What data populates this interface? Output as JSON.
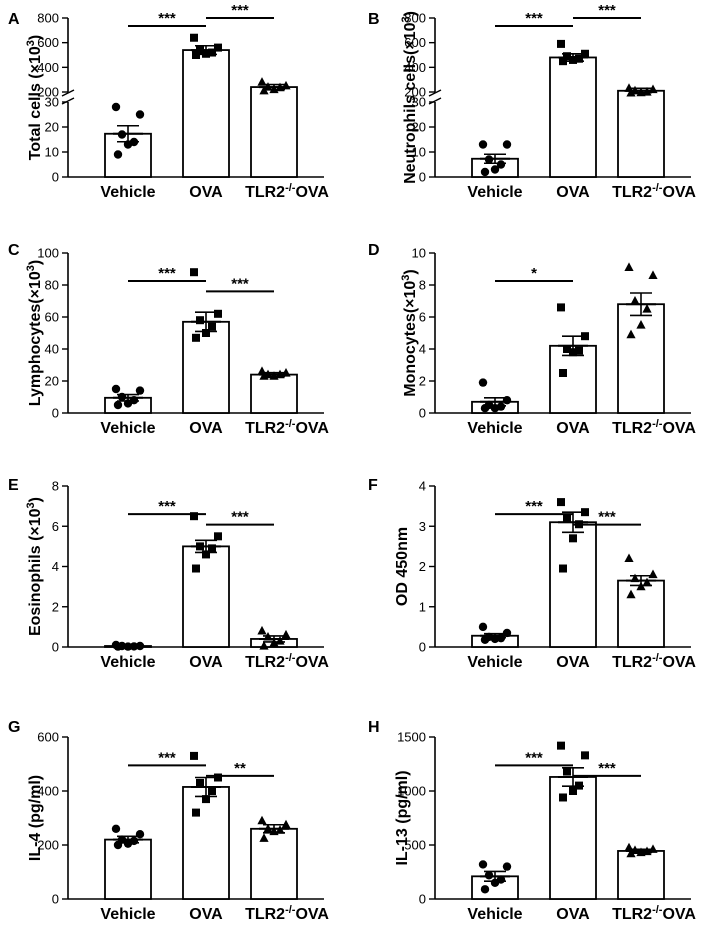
{
  "chart_data": [
    {
      "panel": "A",
      "type": "bar",
      "ylabel": "Total cells (×10³)",
      "axis_break": true,
      "categories": [
        "Vehicle",
        "OVA",
        "TLR2⁻/⁻OVA"
      ],
      "bar_values": [
        17.3,
        540,
        240
      ],
      "sem": [
        3.2,
        35,
        20
      ],
      "points": [
        [
          28,
          25,
          17,
          14,
          13,
          9
        ],
        [
          640,
          560,
          540,
          520,
          510,
          500
        ],
        [
          280,
          250,
          240,
          235,
          220,
          210
        ]
      ],
      "markers": [
        "circle",
        "square",
        "triangle"
      ],
      "lower_ticks": [
        0,
        10,
        20,
        30
      ],
      "upper_ticks": [
        200,
        400,
        600,
        800
      ],
      "significance": [
        {
          "from": 0,
          "to": 1,
          "label": "***"
        },
        {
          "from": 1,
          "to": 2,
          "label": "***"
        }
      ]
    },
    {
      "panel": "B",
      "type": "bar",
      "ylabel": "Neutrophils cells(×10³)",
      "axis_break": true,
      "categories": [
        "Vehicle",
        "OVA",
        "TLR2⁻/⁻OVA"
      ],
      "bar_values": [
        7.3,
        480,
        210
      ],
      "sem": [
        1.8,
        30,
        20
      ],
      "points": [
        [
          13,
          13,
          7,
          5,
          3,
          2
        ],
        [
          590,
          510,
          490,
          470,
          460,
          450
        ],
        [
          230,
          220,
          210,
          200,
          190,
          185
        ]
      ],
      "markers": [
        "circle",
        "square",
        "triangle"
      ],
      "lower_ticks": [
        0,
        10,
        20,
        30
      ],
      "upper_ticks": [
        200,
        400,
        600,
        800
      ],
      "significance": [
        {
          "from": 0,
          "to": 1,
          "label": "***"
        },
        {
          "from": 1,
          "to": 2,
          "label": "***"
        }
      ]
    },
    {
      "panel": "C",
      "type": "bar",
      "ylabel": "Lymphocytes(×10³)",
      "categories": [
        "Vehicle",
        "OVA",
        "TLR2⁻/⁻OVA"
      ],
      "bar_values": [
        9.5,
        57,
        24
      ],
      "sem": [
        2,
        6,
        1.2
      ],
      "points": [
        [
          15,
          14,
          10,
          8,
          6,
          5
        ],
        [
          88,
          62,
          58,
          54,
          50,
          47
        ],
        [
          26,
          25,
          24,
          24,
          23,
          23
        ]
      ],
      "markers": [
        "circle",
        "square",
        "triangle"
      ],
      "ylim": [
        0,
        100
      ],
      "ticks": [
        0,
        20,
        40,
        60,
        80,
        100
      ],
      "significance": [
        {
          "from": 0,
          "to": 1,
          "label": "***"
        },
        {
          "from": 1,
          "to": 2,
          "label": "***"
        }
      ]
    },
    {
      "panel": "D",
      "type": "bar",
      "ylabel": "Monocytes(×10³)",
      "categories": [
        "Vehicle",
        "OVA",
        "TLR2⁻/⁻OVA"
      ],
      "bar_values": [
        0.7,
        4.2,
        6.8
      ],
      "sem": [
        0.25,
        0.6,
        0.7
      ],
      "points": [
        [
          1.9,
          0.8,
          0.5,
          0.4,
          0.3,
          0.3
        ],
        [
          6.6,
          4.8,
          4.0,
          3.9,
          3.8,
          2.5
        ],
        [
          9.1,
          8.6,
          7.0,
          6.5,
          5.5,
          4.9
        ]
      ],
      "markers": [
        "circle",
        "square",
        "triangle"
      ],
      "ylim": [
        0,
        10
      ],
      "ticks": [
        0,
        2,
        4,
        6,
        8,
        10
      ],
      "significance": [
        {
          "from": 0,
          "to": 1,
          "label": "*"
        }
      ]
    },
    {
      "panel": "E",
      "type": "bar",
      "ylabel": "Eosinophils (×10³)",
      "categories": [
        "Vehicle",
        "OVA",
        "TLR2⁻/⁻OVA"
      ],
      "bar_values": [
        0.05,
        5.0,
        0.4
      ],
      "sem": [
        0.02,
        0.3,
        0.15
      ],
      "points": [
        [
          0.1,
          0.05,
          0.05,
          0.03,
          0.02,
          0.02
        ],
        [
          6.5,
          5.5,
          5.0,
          4.9,
          4.6,
          3.9
        ],
        [
          0.8,
          0.6,
          0.5,
          0.3,
          0.2,
          0.05
        ]
      ],
      "markers": [
        "circle",
        "square",
        "triangle"
      ],
      "ylim": [
        0,
        8
      ],
      "ticks": [
        0,
        2,
        4,
        6,
        8
      ],
      "significance": [
        {
          "from": 0,
          "to": 1,
          "label": "***"
        },
        {
          "from": 1,
          "to": 2,
          "label": "***"
        }
      ]
    },
    {
      "panel": "F",
      "type": "bar",
      "ylabel": "OD 450nm",
      "categories": [
        "Vehicle",
        "OVA",
        "TLR2⁻/⁻OVA"
      ],
      "bar_values": [
        0.28,
        3.1,
        1.65
      ],
      "sem": [
        0.05,
        0.25,
        0.12
      ],
      "points": [
        [
          0.5,
          0.35,
          0.25,
          0.22,
          0.2,
          0.18
        ],
        [
          3.6,
          3.35,
          3.2,
          3.05,
          2.7,
          1.95
        ],
        [
          2.2,
          1.8,
          1.7,
          1.6,
          1.5,
          1.3
        ]
      ],
      "markers": [
        "circle",
        "square",
        "triangle"
      ],
      "ylim": [
        0,
        4
      ],
      "ticks": [
        0,
        1,
        2,
        3,
        4
      ],
      "significance": [
        {
          "from": 0,
          "to": 1,
          "label": "***"
        },
        {
          "from": 1,
          "to": 2,
          "label": "***"
        }
      ]
    },
    {
      "panel": "G",
      "type": "bar",
      "ylabel": "IL-4 (pg/ml)",
      "categories": [
        "Vehicle",
        "OVA",
        "TLR2⁻/⁻OVA"
      ],
      "bar_values": [
        220,
        415,
        260
      ],
      "sem": [
        12,
        35,
        15
      ],
      "points": [
        [
          260,
          240,
          220,
          215,
          205,
          200
        ],
        [
          530,
          450,
          430,
          400,
          370,
          320
        ],
        [
          290,
          275,
          260,
          255,
          250,
          225
        ]
      ],
      "markers": [
        "circle",
        "square",
        "triangle"
      ],
      "ylim": [
        0,
        600
      ],
      "ticks": [
        0,
        200,
        400,
        600
      ],
      "significance": [
        {
          "from": 0,
          "to": 1,
          "label": "***"
        },
        {
          "from": 1,
          "to": 2,
          "label": "**"
        }
      ]
    },
    {
      "panel": "H",
      "type": "bar",
      "ylabel": "IL-13 (pg/ml)",
      "categories": [
        "Vehicle",
        "OVA",
        "TLR2⁻/⁻OVA"
      ],
      "bar_values": [
        210,
        1130,
        445
      ],
      "sem": [
        45,
        85,
        15
      ],
      "points": [
        [
          320,
          300,
          220,
          180,
          150,
          90
        ],
        [
          1420,
          1330,
          1180,
          1050,
          1000,
          940
        ],
        [
          475,
          460,
          450,
          440,
          430,
          420
        ]
      ],
      "markers": [
        "circle",
        "square",
        "triangle"
      ],
      "ylim": [
        0,
        1500
      ],
      "ticks": [
        0,
        500,
        1000,
        1500
      ],
      "significance": [
        {
          "from": 0,
          "to": 1,
          "label": "***"
        },
        {
          "from": 1,
          "to": 2,
          "label": "***"
        }
      ]
    }
  ]
}
